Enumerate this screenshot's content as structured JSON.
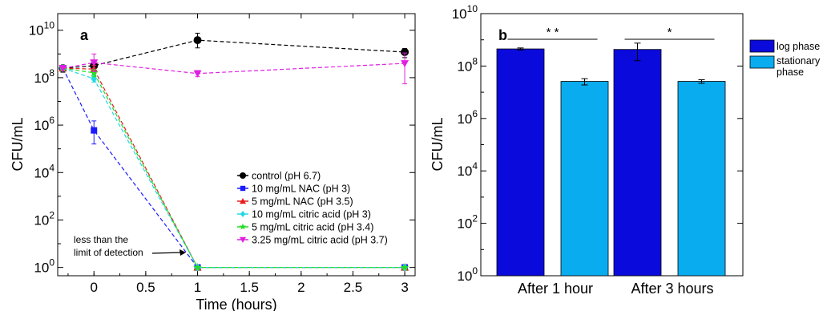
{
  "chart_data": [
    {
      "type": "line",
      "panel_label": "a",
      "xlabel": "Time (hours)",
      "ylabel": "CFU/mL",
      "xlim": [
        -0.35,
        3.1
      ],
      "ylim_log10": [
        -0.35,
        10.7
      ],
      "y_scale": "log",
      "x_ticks": [
        {
          "value": 0,
          "label": "0"
        },
        {
          "value": 0.5,
          "label": "0.5"
        },
        {
          "value": 1,
          "label": "1"
        },
        {
          "value": 1.5,
          "label": "1.5"
        },
        {
          "value": 2,
          "label": "2"
        },
        {
          "value": 2.5,
          "label": "2.5"
        },
        {
          "value": 3,
          "label": "3"
        }
      ],
      "y_ticks": [
        {
          "log": 0,
          "base": "10",
          "exp": "0"
        },
        {
          "log": 2,
          "base": "10",
          "exp": "2"
        },
        {
          "log": 4,
          "base": "10",
          "exp": "4"
        },
        {
          "log": 6,
          "base": "10",
          "exp": "6"
        },
        {
          "log": 8,
          "base": "10",
          "exp": "8"
        },
        {
          "log": 10,
          "base": "10",
          "exp": "10"
        }
      ],
      "legend_position": "bottom-right",
      "series": [
        {
          "name": "control (pH 6.7)",
          "color": "#000000",
          "marker": "circle",
          "points": [
            {
              "x": -0.3,
              "y": 250000000.0,
              "y_err": [
                170000000.0,
                320000000.0
              ]
            },
            {
              "x": 0,
              "y": 320000000.0,
              "y_err": [
                260000000.0,
                400000000.0
              ]
            },
            {
              "x": 1,
              "y": 3800000000.0,
              "y_err": [
                1800000000.0,
                7500000000.0
              ]
            },
            {
              "x": 3,
              "y": 1200000000.0,
              "y_err": [
                700000000.0,
                1700000000.0
              ]
            }
          ]
        },
        {
          "name": "10 mg/mL NAC (pH 3)",
          "color": "#1a1aff",
          "marker": "square",
          "points": [
            {
              "x": -0.3,
              "y": 250000000.0
            },
            {
              "x": 0,
              "y": 600000.0,
              "y_err": [
                160000.0,
                1500000.0
              ]
            },
            {
              "x": 1,
              "y": 1
            },
            {
              "x": 3,
              "y": 1
            }
          ]
        },
        {
          "name": "5 mg/mL NAC (pH 3.5)",
          "color": "#e81c1c",
          "marker": "triangle-up",
          "points": [
            {
              "x": -0.3,
              "y": 250000000.0
            },
            {
              "x": 0,
              "y": 230000000.0,
              "y_err": [
                160000000.0,
                330000000.0
              ]
            },
            {
              "x": 1,
              "y": 1
            },
            {
              "x": 3,
              "y": 1
            }
          ]
        },
        {
          "name": "10 mg/mL citric acid (pH 3)",
          "color": "#22d8e6",
          "marker": "diamond",
          "points": [
            {
              "x": -0.3,
              "y": 250000000.0
            },
            {
              "x": 0,
              "y": 90000000.0,
              "y_err": [
                65000000.0,
                120000000.0
              ]
            },
            {
              "x": 1,
              "y": 1
            },
            {
              "x": 3,
              "y": 1
            }
          ]
        },
        {
          "name": "5 mg/mL citric acid (pH 3.4)",
          "color": "#22dd22",
          "marker": "star",
          "points": [
            {
              "x": -0.3,
              "y": 250000000.0
            },
            {
              "x": 0,
              "y": 160000000.0,
              "y_err": [
                110000000.0,
                220000000.0
              ]
            },
            {
              "x": 1,
              "y": 1
            },
            {
              "x": 3,
              "y": 1
            }
          ]
        },
        {
          "name": "3.25 mg/mL citric acid (pH 3.7)",
          "color": "#e020e0",
          "marker": "triangle-down",
          "points": [
            {
              "x": -0.3,
              "y": 250000000.0
            },
            {
              "x": 0,
              "y": 430000000.0,
              "y_err": [
                180000000.0,
                1000000000.0
              ]
            },
            {
              "x": 1,
              "y": 150000000.0,
              "y_err": [
                110000000.0,
                200000000.0
              ]
            },
            {
              "x": 3,
              "y": 400000000.0,
              "y_err": [
                55000000.0,
                1100000000.0
              ]
            }
          ]
        }
      ],
      "annotation": {
        "text_line1": "less than the",
        "text_line2": "limit of detection",
        "points_to": {
          "x": 1,
          "y": 1
        }
      }
    },
    {
      "type": "bar",
      "panel_label": "b",
      "ylabel": "CFU/mL",
      "y_scale": "log",
      "ylim_log10": [
        0,
        10
      ],
      "categories": [
        "After 1 hour",
        "After 3 hours"
      ],
      "y_ticks": [
        {
          "log": 0,
          "base": "10",
          "exp": "0"
        },
        {
          "log": 2,
          "base": "10",
          "exp": "2"
        },
        {
          "log": 4,
          "base": "10",
          "exp": "4"
        },
        {
          "log": 6,
          "base": "10",
          "exp": "6"
        },
        {
          "log": 8,
          "base": "10",
          "exp": "8"
        },
        {
          "log": 10,
          "base": "10",
          "exp": "10"
        }
      ],
      "legend_position": "outside-right",
      "series": [
        {
          "name": "log phase",
          "color": "#0a0adc",
          "values": [
            450000000.0,
            430000000.0
          ],
          "errors": [
            [
              410000000.0,
              490000000.0
            ],
            [
              160000000.0,
              750000000.0
            ]
          ]
        },
        {
          "name": "stationary phase",
          "color": "#0aacf0",
          "values": [
            26000000.0,
            26000000.0
          ],
          "errors": [
            [
              19000000.0,
              33000000.0
            ],
            [
              22000000.0,
              30000000.0
            ]
          ]
        }
      ],
      "significance": [
        {
          "category": "After 1 hour",
          "label": "* *"
        },
        {
          "category": "After 3 hours",
          "label": "*"
        }
      ]
    }
  ]
}
